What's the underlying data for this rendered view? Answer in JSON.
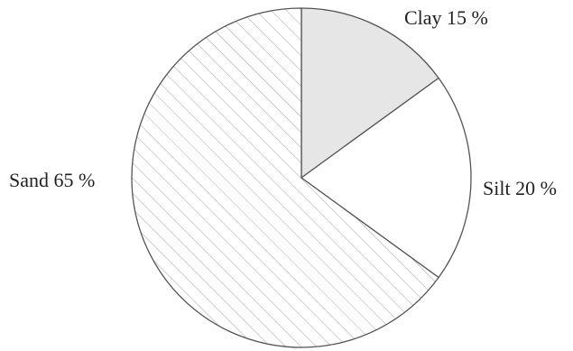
{
  "chart_data": {
    "type": "pie",
    "title": "",
    "slices": [
      {
        "label": "Clay 15 %",
        "value": 15,
        "fill": "#e6e6e6",
        "pattern": "none"
      },
      {
        "label": "Silt 20 %",
        "value": 20,
        "fill": "#ffffff",
        "pattern": "none"
      },
      {
        "label": "Sand 65 %",
        "value": 65,
        "fill": "#ffffff",
        "pattern": "diagonal-hatch"
      }
    ],
    "start_angle": "top",
    "direction": "clockwise",
    "colors": {
      "stroke": "#555555",
      "hatch": "#9a9a9a"
    }
  }
}
